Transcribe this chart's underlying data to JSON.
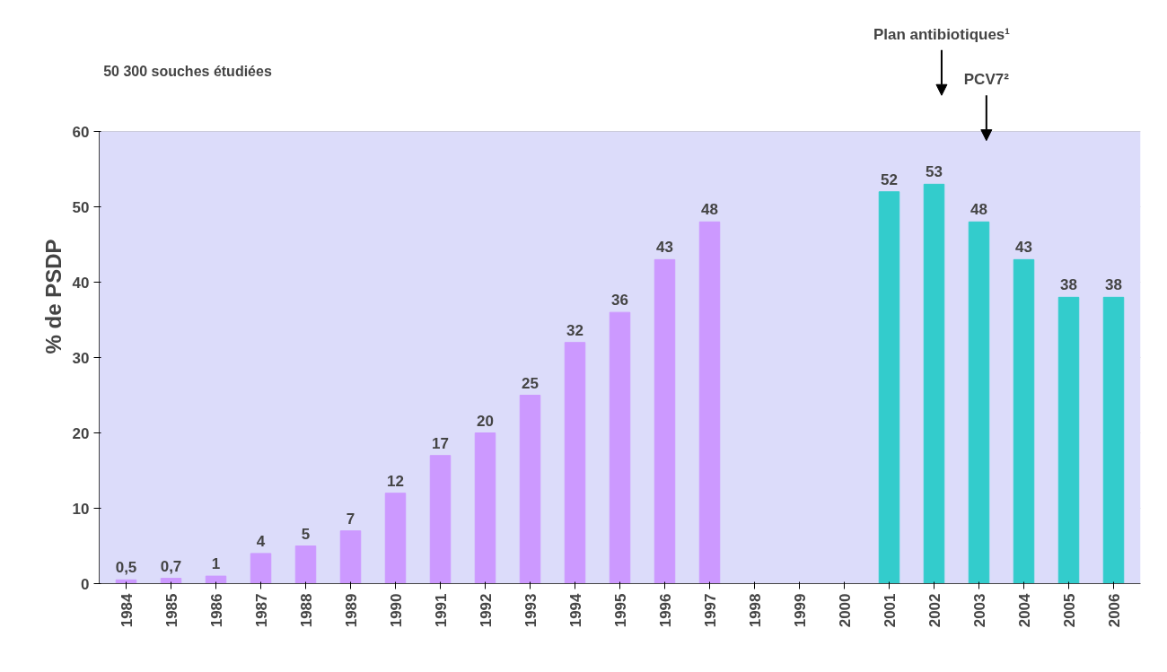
{
  "chart_data": {
    "type": "bar",
    "ylabel": "% de PSDP",
    "categories": [
      "1984",
      "1985",
      "1986",
      "1987",
      "1988",
      "1989",
      "1990",
      "1991",
      "1992",
      "1993",
      "1994",
      "1995",
      "1996",
      "1997",
      "1998",
      "1999",
      "2000",
      "2001",
      "2002",
      "2003",
      "2004",
      "2005",
      "2006"
    ],
    "values": [
      0.5,
      0.7,
      1,
      4,
      5,
      7,
      12,
      17,
      20,
      25,
      32,
      36,
      43,
      48,
      null,
      null,
      null,
      52,
      53,
      48,
      43,
      38,
      38
    ],
    "colors": [
      "#cc99ff",
      "#cc99ff",
      "#cc99ff",
      "#cc99ff",
      "#cc99ff",
      "#cc99ff",
      "#cc99ff",
      "#cc99ff",
      "#cc99ff",
      "#cc99ff",
      "#cc99ff",
      "#cc99ff",
      "#cc99ff",
      "#cc99ff",
      "#cc99ff",
      "#cc99ff",
      "#cc99ff",
      "#33cccc",
      "#33cccc",
      "#33cccc",
      "#33cccc",
      "#33cccc",
      "#33cccc"
    ],
    "value_labels": [
      "0,5",
      "0,7",
      "1",
      "4",
      "5",
      "7",
      "12",
      "17",
      "20",
      "25",
      "32",
      "36",
      "43",
      "48",
      null,
      null,
      null,
      "52",
      "53",
      "48",
      "43",
      "38",
      "38"
    ],
    "ylim": [
      0,
      60
    ],
    "yticks": [
      0,
      10,
      20,
      30,
      40,
      50,
      60
    ],
    "grid": "y",
    "annotations": [
      "50 300 souches étudiées",
      "Plan antibiotiques¹",
      "PCV7²"
    ]
  }
}
